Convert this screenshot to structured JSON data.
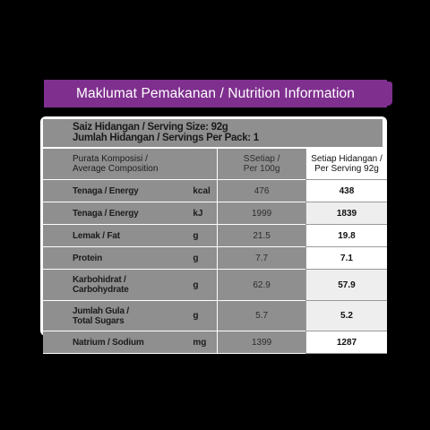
{
  "banner": "Maklumat Pemakanan / Nutrition Information",
  "serving_size": "Saiz Hidangan / Serving Size: 92g",
  "servings_per_pack": "Jumlah Hidangan / Servings Per Pack: 1",
  "header": {
    "composition_line1": "Purata Komposisi /",
    "composition_line2": "Average Composition",
    "per100_line1": "SSetiap /",
    "per100_line2": "Per 100g",
    "serving_line1": "Setiap Hidangan /",
    "serving_line2": "Per Serving 92g"
  },
  "rows": [
    {
      "line1": "Tenaga / Energy",
      "line2": "",
      "unit": "kcal",
      "per100": "476",
      "serving": "438"
    },
    {
      "line1": "Tenaga / Energy",
      "line2": "",
      "unit": "kJ",
      "per100": "1999",
      "serving": "1839"
    },
    {
      "line1": "Lemak / Fat",
      "line2": "",
      "unit": "g",
      "per100": "21.5",
      "serving": "19.8"
    },
    {
      "line1": "Protein",
      "line2": "",
      "unit": "g",
      "per100": "7.7",
      "serving": "7.1"
    },
    {
      "line1": "Karbohidrat /",
      "line2": "Carbohydrate",
      "unit": "g",
      "per100": "62.9",
      "serving": "57.9"
    },
    {
      "line1": "Jumlah Gula /",
      "line2": "Total Sugars",
      "unit": "g",
      "per100": "5.7",
      "serving": "5.2"
    },
    {
      "line1": "Natrium / Sodium",
      "line2": "",
      "unit": "mg",
      "per100": "1399",
      "serving": "1287"
    }
  ]
}
